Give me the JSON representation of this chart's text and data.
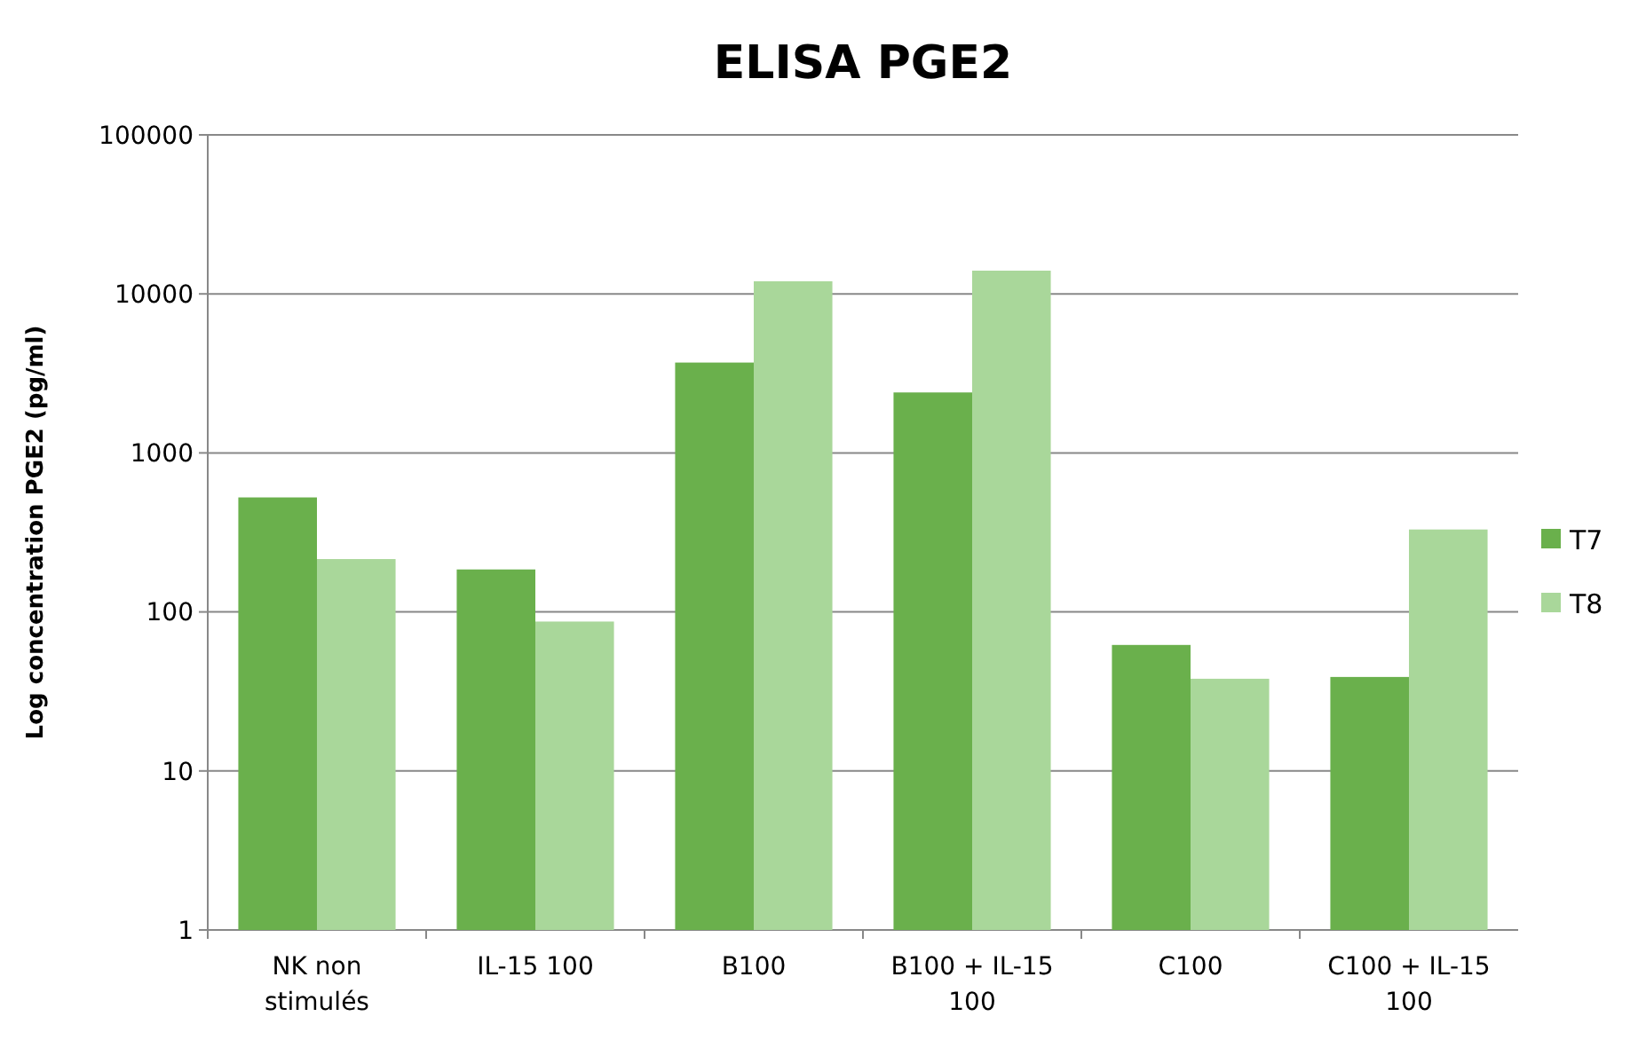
{
  "chart_data": {
    "type": "bar",
    "title": "ELISA PGE2",
    "ylabel": "Log concentration PGE2 (pg/ml)",
    "categories": [
      "NK non stimulés",
      "IL-15 100",
      "B100",
      "B100 + IL-15 100",
      "C100",
      "C100 + IL-15 100"
    ],
    "series": [
      {
        "name": "T7",
        "color": "#6ab04c",
        "values": [
          525,
          185,
          3700,
          2400,
          62,
          39
        ]
      },
      {
        "name": "T8",
        "color": "#a9d79a",
        "values": [
          215,
          87,
          12000,
          14000,
          38,
          330
        ]
      }
    ],
    "log": true,
    "ylim": [
      1,
      100000
    ],
    "yticks": [
      1,
      10,
      100,
      1000,
      10000,
      100000
    ],
    "grid": "y",
    "legend": "right"
  }
}
